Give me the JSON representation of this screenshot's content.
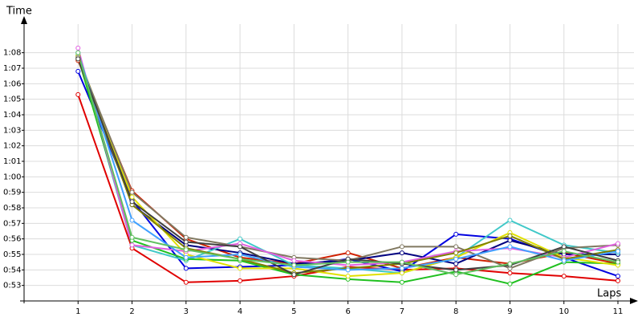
{
  "chart_data": {
    "type": "line",
    "y_label": "Time",
    "x_label": "Laps",
    "x": [
      1,
      2,
      3,
      4,
      5,
      6,
      7,
      8,
      9,
      10,
      11
    ],
    "xlim": [
      0,
      11
    ],
    "xticks": [
      1,
      2,
      3,
      4,
      5,
      6,
      7,
      8,
      9,
      10,
      11
    ],
    "ylim": [
      52,
      70
    ],
    "yticks": [
      {
        "value": 53,
        "label": "0:53"
      },
      {
        "value": 54,
        "label": "0:54"
      },
      {
        "value": 55,
        "label": "0:55"
      },
      {
        "value": 56,
        "label": "0:56"
      },
      {
        "value": 57,
        "label": "0:57"
      },
      {
        "value": 58,
        "label": "0:58"
      },
      {
        "value": 59,
        "label": "0:59"
      },
      {
        "value": 60,
        "label": "1:00"
      },
      {
        "value": 61,
        "label": "1:01"
      },
      {
        "value": 62,
        "label": "1:02"
      },
      {
        "value": 63,
        "label": "1:03"
      },
      {
        "value": 64,
        "label": "1:04"
      },
      {
        "value": 65,
        "label": "1:05"
      },
      {
        "value": 66,
        "label": "1:06"
      },
      {
        "value": 67,
        "label": "1:07"
      },
      {
        "value": 68,
        "label": "1:08"
      }
    ],
    "grid": true,
    "series": [
      {
        "color": "#e00000",
        "values": [
          65.3,
          55.4,
          53.2,
          53.3,
          53.6,
          54.2,
          54.0,
          54.1,
          53.8,
          53.6,
          53.3
        ]
      },
      {
        "color": "#d02000",
        "values": [
          67.5,
          59.1,
          56.0,
          54.8,
          54.4,
          55.1,
          54.1,
          54.8,
          54.4,
          55.1,
          54.4
        ]
      },
      {
        "color": "#0000e0",
        "values": [
          66.8,
          58.5,
          54.1,
          54.2,
          54.3,
          54.7,
          53.9,
          56.3,
          56.0,
          54.8,
          53.6
        ]
      },
      {
        "color": "#000080",
        "values": [
          67.8,
          58.2,
          55.6,
          55.1,
          54.4,
          54.6,
          55.1,
          54.4,
          55.9,
          55.0,
          55.0
        ]
      },
      {
        "color": "#40c8c8",
        "values": [
          67.9,
          55.6,
          54.6,
          56.0,
          54.3,
          54.1,
          53.8,
          54.8,
          57.2,
          55.6,
          55.1
        ]
      },
      {
        "color": "#20c020",
        "values": [
          67.7,
          55.9,
          54.7,
          54.6,
          53.7,
          53.4,
          53.2,
          53.9,
          53.1,
          54.5,
          54.4
        ]
      },
      {
        "color": "#e0e000",
        "values": [
          67.8,
          58.7,
          55.0,
          54.1,
          54.1,
          53.6,
          53.8,
          54.8,
          56.4,
          54.8,
          54.3
        ]
      },
      {
        "color": "#807860",
        "values": [
          67.7,
          59.0,
          56.1,
          55.5,
          54.8,
          54.6,
          55.5,
          55.5,
          54.1,
          55.4,
          55.6
        ]
      },
      {
        "color": "#e060e0",
        "values": [
          68.3,
          55.6,
          55.2,
          55.7,
          54.6,
          54.3,
          54.5,
          55.2,
          55.4,
          54.8,
          55.7
        ]
      },
      {
        "color": "#808000",
        "values": [
          67.6,
          58.2,
          55.4,
          54.7,
          53.8,
          54.1,
          54.4,
          55.1,
          56.2,
          54.7,
          55.3
        ]
      },
      {
        "color": "#40a0ff",
        "values": [
          68.0,
          57.2,
          54.8,
          55.0,
          54.2,
          54.0,
          54.1,
          54.7,
          55.5,
          54.6,
          55.2
        ]
      },
      {
        "color": "#404040",
        "values": [
          67.6,
          58.4,
          55.8,
          55.5,
          53.7,
          54.7,
          54.4,
          54.0,
          54.3,
          55.5,
          54.6
        ]
      },
      {
        "color": "#60c060",
        "values": [
          68.0,
          56.1,
          55.3,
          54.7,
          54.3,
          54.5,
          54.5,
          53.7,
          54.4,
          55.2,
          54.5
        ]
      }
    ]
  }
}
